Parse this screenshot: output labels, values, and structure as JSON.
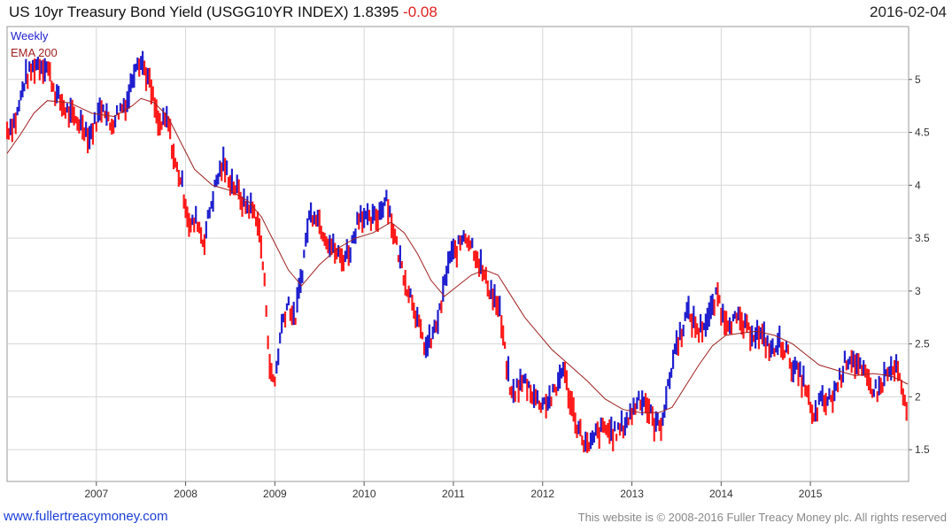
{
  "header": {
    "title": "US 10yr Treasury Bond Yield (USGG10YR INDEX) 1.8395",
    "change": "-0.08",
    "date": "2016-02-04"
  },
  "footer": {
    "site": "www.fullertreacymoney.com",
    "copyright": "This website is © 2008-2016 Fuller Treacy Money plc. All rights reserved"
  },
  "colors": {
    "up": "#1f1fcf",
    "down": "#ff1a1a",
    "ema": "#a02020",
    "grid": "#d6d6d6"
  },
  "chart_data": {
    "type": "line",
    "title": "US 10yr Treasury Bond Yield (USGG10YR INDEX)",
    "last_value": 1.8395,
    "change": -0.08,
    "legend": [
      "Weekly",
      "EMA 200"
    ],
    "legend_position": "top-left",
    "x_ticks": [
      "2007",
      "2008",
      "2009",
      "2010",
      "2011",
      "2012",
      "2013",
      "2014",
      "2015"
    ],
    "y_ticks": [
      1.5,
      2,
      2.5,
      3,
      3.5,
      4,
      4.5,
      5
    ],
    "ylim": [
      1.2,
      5.5
    ],
    "xlim": [
      2006.0,
      2016.1
    ],
    "grid": true,
    "series": [
      {
        "name": "Weekly",
        "style": "weekly high-low bars, blue when rising, red when falling",
        "points": [
          [
            2006.0,
            4.52
          ],
          [
            2006.1,
            4.62
          ],
          [
            2006.2,
            5.0
          ],
          [
            2006.33,
            5.15
          ],
          [
            2006.45,
            5.12
          ],
          [
            2006.55,
            4.85
          ],
          [
            2006.65,
            4.72
          ],
          [
            2006.75,
            4.62
          ],
          [
            2006.85,
            4.58
          ],
          [
            2006.92,
            4.45
          ],
          [
            2007.0,
            4.62
          ],
          [
            2007.08,
            4.78
          ],
          [
            2007.15,
            4.55
          ],
          [
            2007.25,
            4.7
          ],
          [
            2007.35,
            4.8
          ],
          [
            2007.45,
            5.2
          ],
          [
            2007.52,
            5.15
          ],
          [
            2007.6,
            4.95
          ],
          [
            2007.7,
            4.55
          ],
          [
            2007.8,
            4.62
          ],
          [
            2007.88,
            4.2
          ],
          [
            2007.95,
            4.05
          ],
          [
            2008.05,
            3.6
          ],
          [
            2008.13,
            3.68
          ],
          [
            2008.2,
            3.45
          ],
          [
            2008.28,
            3.8
          ],
          [
            2008.35,
            4.05
          ],
          [
            2008.42,
            4.2
          ],
          [
            2008.5,
            4.05
          ],
          [
            2008.58,
            3.95
          ],
          [
            2008.65,
            3.82
          ],
          [
            2008.72,
            3.8
          ],
          [
            2008.8,
            3.7
          ],
          [
            2008.85,
            3.4
          ],
          [
            2008.9,
            2.9
          ],
          [
            2008.95,
            2.2
          ],
          [
            2009.0,
            2.15
          ],
          [
            2009.08,
            2.7
          ],
          [
            2009.15,
            2.9
          ],
          [
            2009.22,
            2.7
          ],
          [
            2009.3,
            3.15
          ],
          [
            2009.38,
            3.7
          ],
          [
            2009.45,
            3.75
          ],
          [
            2009.55,
            3.55
          ],
          [
            2009.65,
            3.4
          ],
          [
            2009.75,
            3.3
          ],
          [
            2009.85,
            3.4
          ],
          [
            2009.95,
            3.75
          ],
          [
            2010.05,
            3.65
          ],
          [
            2010.15,
            3.7
          ],
          [
            2010.25,
            3.9
          ],
          [
            2010.32,
            3.6
          ],
          [
            2010.4,
            3.3
          ],
          [
            2010.48,
            3.05
          ],
          [
            2010.55,
            2.9
          ],
          [
            2010.63,
            2.6
          ],
          [
            2010.7,
            2.45
          ],
          [
            2010.78,
            2.6
          ],
          [
            2010.85,
            2.8
          ],
          [
            2010.95,
            3.3
          ],
          [
            2011.05,
            3.4
          ],
          [
            2011.12,
            3.55
          ],
          [
            2011.2,
            3.45
          ],
          [
            2011.28,
            3.3
          ],
          [
            2011.36,
            3.1
          ],
          [
            2011.45,
            2.95
          ],
          [
            2011.52,
            2.8
          ],
          [
            2011.58,
            2.4
          ],
          [
            2011.65,
            2.0
          ],
          [
            2011.72,
            2.1
          ],
          [
            2011.8,
            2.15
          ],
          [
            2011.88,
            2.05
          ],
          [
            2011.95,
            1.95
          ],
          [
            2012.05,
            1.95
          ],
          [
            2012.15,
            2.05
          ],
          [
            2012.22,
            2.3
          ],
          [
            2012.3,
            2.0
          ],
          [
            2012.38,
            1.75
          ],
          [
            2012.45,
            1.6
          ],
          [
            2012.52,
            1.5
          ],
          [
            2012.6,
            1.65
          ],
          [
            2012.7,
            1.7
          ],
          [
            2012.8,
            1.65
          ],
          [
            2012.9,
            1.72
          ],
          [
            2013.0,
            1.85
          ],
          [
            2013.08,
            2.0
          ],
          [
            2013.15,
            1.95
          ],
          [
            2013.25,
            1.75
          ],
          [
            2013.32,
            1.72
          ],
          [
            2013.4,
            2.05
          ],
          [
            2013.48,
            2.45
          ],
          [
            2013.55,
            2.6
          ],
          [
            2013.62,
            2.8
          ],
          [
            2013.68,
            2.72
          ],
          [
            2013.75,
            2.62
          ],
          [
            2013.82,
            2.7
          ],
          [
            2013.9,
            2.82
          ],
          [
            2013.96,
            2.98
          ],
          [
            2014.02,
            2.75
          ],
          [
            2014.1,
            2.72
          ],
          [
            2014.2,
            2.72
          ],
          [
            2014.3,
            2.62
          ],
          [
            2014.4,
            2.6
          ],
          [
            2014.5,
            2.52
          ],
          [
            2014.58,
            2.42
          ],
          [
            2014.66,
            2.52
          ],
          [
            2014.72,
            2.45
          ],
          [
            2014.8,
            2.28
          ],
          [
            2014.88,
            2.2
          ],
          [
            2014.95,
            2.1
          ],
          [
            2015.03,
            1.75
          ],
          [
            2015.1,
            1.95
          ],
          [
            2015.18,
            1.95
          ],
          [
            2015.25,
            2.0
          ],
          [
            2015.32,
            2.15
          ],
          [
            2015.4,
            2.35
          ],
          [
            2015.46,
            2.38
          ],
          [
            2015.52,
            2.3
          ],
          [
            2015.6,
            2.2
          ],
          [
            2015.68,
            2.1
          ],
          [
            2015.76,
            2.05
          ],
          [
            2015.84,
            2.2
          ],
          [
            2015.92,
            2.25
          ],
          [
            2015.98,
            2.25
          ],
          [
            2016.04,
            1.95
          ],
          [
            2016.09,
            1.84
          ]
        ]
      },
      {
        "name": "EMA 200",
        "points": [
          [
            2006.0,
            4.3
          ],
          [
            2006.15,
            4.48
          ],
          [
            2006.3,
            4.68
          ],
          [
            2006.45,
            4.8
          ],
          [
            2006.7,
            4.78
          ],
          [
            2006.95,
            4.68
          ],
          [
            2007.2,
            4.65
          ],
          [
            2007.4,
            4.75
          ],
          [
            2007.5,
            4.82
          ],
          [
            2007.65,
            4.78
          ],
          [
            2007.8,
            4.65
          ],
          [
            2007.95,
            4.4
          ],
          [
            2008.1,
            4.15
          ],
          [
            2008.3,
            4.0
          ],
          [
            2008.5,
            3.95
          ],
          [
            2008.7,
            3.85
          ],
          [
            2008.85,
            3.7
          ],
          [
            2009.0,
            3.45
          ],
          [
            2009.15,
            3.2
          ],
          [
            2009.3,
            3.05
          ],
          [
            2009.5,
            3.25
          ],
          [
            2009.7,
            3.4
          ],
          [
            2009.9,
            3.5
          ],
          [
            2010.1,
            3.55
          ],
          [
            2010.3,
            3.65
          ],
          [
            2010.45,
            3.55
          ],
          [
            2010.6,
            3.35
          ],
          [
            2010.75,
            3.1
          ],
          [
            2010.9,
            2.95
          ],
          [
            2011.05,
            3.05
          ],
          [
            2011.2,
            3.15
          ],
          [
            2011.35,
            3.2
          ],
          [
            2011.5,
            3.15
          ],
          [
            2011.65,
            2.95
          ],
          [
            2011.8,
            2.75
          ],
          [
            2011.95,
            2.6
          ],
          [
            2012.1,
            2.45
          ],
          [
            2012.3,
            2.3
          ],
          [
            2012.5,
            2.15
          ],
          [
            2012.7,
            1.98
          ],
          [
            2012.9,
            1.88
          ],
          [
            2013.1,
            1.85
          ],
          [
            2013.3,
            1.85
          ],
          [
            2013.45,
            1.9
          ],
          [
            2013.6,
            2.1
          ],
          [
            2013.75,
            2.3
          ],
          [
            2013.9,
            2.48
          ],
          [
            2014.05,
            2.58
          ],
          [
            2014.2,
            2.6
          ],
          [
            2014.4,
            2.62
          ],
          [
            2014.6,
            2.58
          ],
          [
            2014.8,
            2.5
          ],
          [
            2014.95,
            2.4
          ],
          [
            2015.1,
            2.3
          ],
          [
            2015.3,
            2.25
          ],
          [
            2015.5,
            2.2
          ],
          [
            2015.7,
            2.22
          ],
          [
            2015.9,
            2.2
          ],
          [
            2016.09,
            2.12
          ]
        ]
      }
    ]
  }
}
